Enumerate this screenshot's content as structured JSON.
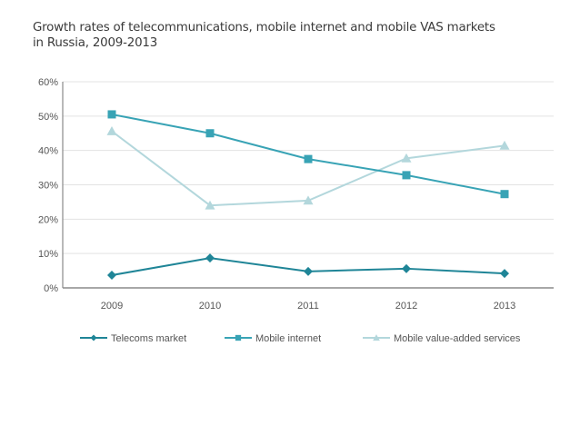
{
  "chart_data": {
    "type": "line",
    "title": "Growth rates of telecommunications, mobile internet and mobile VAS markets in Russia, 2009-2013",
    "title_lines": [
      "Growth rates of telecommunications, mobile internet and mobile VAS markets",
      "in Russia, 2009-2013"
    ],
    "xlabel": "",
    "ylabel": "",
    "categories": [
      "2009",
      "2010",
      "2011",
      "2012",
      "2013"
    ],
    "ylim": [
      0,
      60
    ],
    "yticks": [
      0,
      10,
      20,
      30,
      40,
      50,
      60
    ],
    "ytick_labels": [
      "0%",
      "10%",
      "20%",
      "30%",
      "40%",
      "50%",
      "60%"
    ],
    "grid": true,
    "legend_position": "bottom",
    "series": [
      {
        "name": "Telecoms market",
        "marker": "diamond",
        "color": "#1f8597",
        "values": [
          3.7,
          8.7,
          4.8,
          5.6,
          4.2
        ]
      },
      {
        "name": "Mobile internet",
        "marker": "square",
        "color": "#38a3b5",
        "values": [
          50.5,
          45.0,
          37.5,
          32.8,
          27.3
        ]
      },
      {
        "name": "Mobile value-added services",
        "marker": "triangle",
        "color": "#b3d7dc",
        "values": [
          45.6,
          24.0,
          25.4,
          37.7,
          41.4
        ]
      }
    ]
  }
}
